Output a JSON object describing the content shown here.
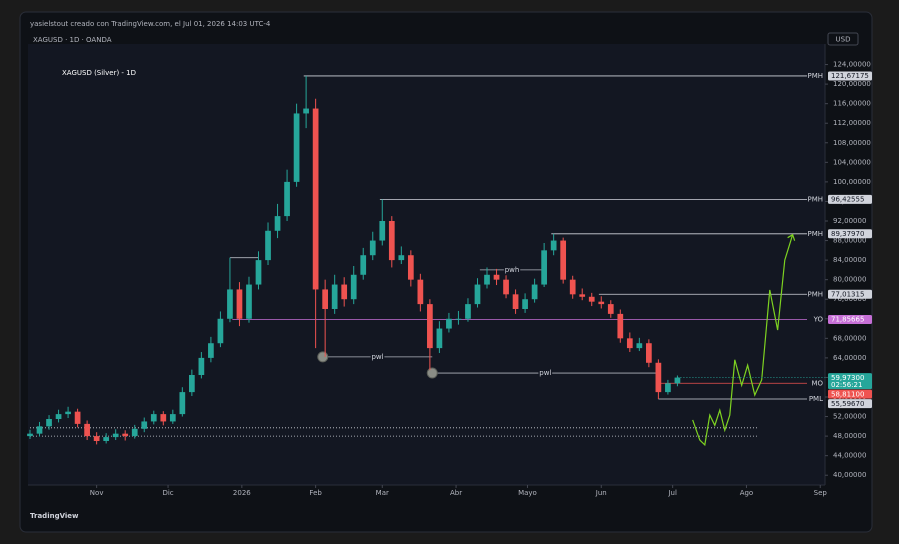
{
  "header": {
    "credit": "yasielstout creado con TradingView.com, el Jul 01, 2026 14:03 UTC-4",
    "symbol": "XAGUSD · 1D · OANDA",
    "currency": "USD",
    "brand": "TradingView"
  },
  "chart_data": {
    "type": "candlestick",
    "title": "XAGUSD (Silver) - 1D",
    "x": [
      -28,
      -24,
      -20,
      -16,
      -12,
      -8,
      -4,
      0,
      4,
      8,
      12,
      16,
      20,
      24,
      28,
      32,
      36,
      40,
      44,
      48,
      52,
      56,
      60,
      64,
      68,
      72,
      76,
      80,
      84,
      88,
      92,
      96,
      100,
      104,
      108,
      112,
      116,
      120,
      124,
      128,
      132,
      136,
      140,
      144,
      148,
      152,
      156,
      160,
      164,
      168,
      172,
      176,
      180,
      184,
      188,
      192,
      196,
      200,
      204,
      208,
      212,
      216,
      220,
      224,
      228,
      232,
      236,
      240,
      244
    ],
    "open": [
      48,
      48.5,
      50,
      51.5,
      52.5,
      53,
      50.5,
      48,
      47,
      47.8,
      48.5,
      48,
      49.5,
      51,
      52.5,
      51,
      52.5,
      57,
      60.5,
      64,
      67,
      72,
      78,
      72,
      79,
      84,
      90,
      93,
      100,
      114,
      115,
      78,
      74,
      79,
      76,
      81,
      85,
      88,
      92,
      84,
      85,
      80,
      75,
      66,
      70,
      72,
      72,
      75,
      79,
      81,
      80,
      77,
      74,
      76,
      79,
      86,
      88,
      80,
      77,
      76.5,
      75.5,
      75,
      73,
      68,
      66,
      67,
      63,
      57,
      58.8
    ],
    "high": [
      49.3,
      50.9,
      52.3,
      53.4,
      54,
      53.6,
      51.2,
      48.8,
      48.6,
      49.4,
      49.2,
      50.3,
      51.8,
      53.2,
      53.1,
      53.4,
      58,
      61.6,
      65.2,
      68.3,
      73.5,
      84.5,
      79.5,
      80.6,
      85.8,
      91.7,
      95.5,
      102.5,
      116,
      121.67,
      117,
      80,
      81,
      80.5,
      82.8,
      86.5,
      89.8,
      96.43,
      93,
      86.8,
      86,
      81.2,
      76,
      71.5,
      73.2,
      73.6,
      76.2,
      80.3,
      82.5,
      82.2,
      80.9,
      78,
      77.2,
      80.2,
      87.5,
      89.38,
      88.6,
      80.8,
      78.2,
      77.3,
      76.6,
      75.8,
      73.9,
      69.2,
      68.1,
      67.8,
      63.7,
      59.5,
      60.4
    ],
    "low": [
      47.4,
      47.9,
      49.3,
      50.8,
      51.7,
      49.8,
      47.2,
      46.3,
      46.5,
      47.2,
      47.1,
      47.5,
      48.8,
      50.4,
      50.2,
      50.5,
      52,
      56.2,
      59.8,
      63.1,
      66.2,
      71.3,
      70.5,
      71.2,
      78,
      83,
      88.5,
      92,
      99,
      111,
      66,
      64.2,
      73,
      74.5,
      75,
      80,
      84,
      87,
      82.5,
      83.2,
      78.6,
      73.5,
      61.5,
      65,
      69.2,
      70.8,
      71.4,
      74.3,
      78.2,
      78.9,
      76.2,
      73,
      73.2,
      75.3,
      78.5,
      85,
      79.2,
      76.1,
      75.8,
      74.6,
      74.1,
      72.2,
      67.1,
      65.2,
      65.4,
      62.1,
      55.5967,
      56.5,
      58.2
    ],
    "close": [
      48.5,
      50,
      51.5,
      52.5,
      53,
      50.5,
      48,
      47,
      47.8,
      48.5,
      48,
      49.5,
      51,
      52.5,
      51,
      52.5,
      57,
      60.5,
      64,
      67,
      72,
      78,
      72,
      79,
      84,
      90,
      93,
      100,
      114,
      115,
      78,
      74,
      79,
      76,
      81,
      85,
      88,
      92,
      84,
      85,
      80,
      75,
      66,
      70,
      72,
      72,
      75,
      79,
      81,
      80,
      77,
      74,
      76,
      79,
      86,
      88,
      80,
      77,
      76.5,
      75.5,
      75,
      73,
      68,
      66,
      67,
      63,
      57,
      58.8,
      59.97
    ],
    "up_color": "#26a69a",
    "down_color": "#ef5350",
    "xlim": [
      -28,
      306
    ],
    "ylim": [
      38,
      128
    ],
    "xticks": [
      {
        "value": 0,
        "label": "Nov"
      },
      {
        "value": 30,
        "label": "Dic"
      },
      {
        "value": 61,
        "label": "2026"
      },
      {
        "value": 92,
        "label": "Feb"
      },
      {
        "value": 120,
        "label": "Mar"
      },
      {
        "value": 151,
        "label": "Abr"
      },
      {
        "value": 181,
        "label": "Mayo"
      },
      {
        "value": 212,
        "label": "Jun"
      },
      {
        "value": 242,
        "label": "Jul"
      },
      {
        "value": 273,
        "label": "Ago"
      },
      {
        "value": 304,
        "label": "Sep"
      }
    ],
    "yticks": [
      {
        "value": 40,
        "label": "40,00000"
      },
      {
        "value": 44,
        "label": "44,00000"
      },
      {
        "value": 48,
        "label": "48,00000"
      },
      {
        "value": 52,
        "label": "52,00000"
      },
      {
        "value": 56,
        "label": "56,00000"
      },
      {
        "value": 60,
        "label": "60,00000"
      },
      {
        "value": 64,
        "label": "64,00000"
      },
      {
        "value": 68,
        "label": "68,00000"
      },
      {
        "value": 72,
        "label": "72,00000"
      },
      {
        "value": 76,
        "label": "76,00000"
      },
      {
        "value": 80,
        "label": "80,00000"
      },
      {
        "value": 84,
        "label": "84,00000"
      },
      {
        "value": 88,
        "label": "88,00000"
      },
      {
        "value": 92,
        "label": "92,00000"
      },
      {
        "value": 96,
        "label": "96,00000"
      },
      {
        "value": 100,
        "label": "100,00000"
      },
      {
        "value": 104,
        "label": "104,00000"
      },
      {
        "value": 108,
        "label": "108,00000"
      },
      {
        "value": 112,
        "label": "112,00000"
      },
      {
        "value": 116,
        "label": "116,00000"
      },
      {
        "value": 120,
        "label": "120,00000"
      },
      {
        "value": 124,
        "label": "124,00000"
      }
    ],
    "level_color": "#d1d4dc",
    "levels": [
      {
        "name": "PMH",
        "value": 121.67175,
        "label": "121,67175",
        "start": 87
      },
      {
        "name": "PMH",
        "value": 96.42555,
        "label": "96,42555",
        "start": 119
      },
      {
        "name": "PMH",
        "value": 89.3797,
        "label": "89,37970",
        "start": 191
      },
      {
        "name": "PMH",
        "value": 77.01315,
        "label": "77,01315",
        "start": 211
      },
      {
        "name": "YO",
        "value": 71.85665,
        "label": "71,85665",
        "start": 57,
        "color": "#c66fd6"
      },
      {
        "name": "MO",
        "value": 58.811,
        "label": "58,81100",
        "start": 236,
        "color": "#ef5350"
      },
      {
        "name": "PML",
        "value": 55.5967,
        "label": "55,59670",
        "start": 236
      }
    ],
    "last_price": {
      "value": 59.973,
      "label": "59,97300",
      "countdown": "02:56:21",
      "color": "#26a69a"
    },
    "segment_color": "#b2b5be",
    "segments": [
      {
        "label": "pwh",
        "value": 82,
        "x0": 161,
        "x1": 188
      },
      {
        "value": 84.5,
        "x0": 56,
        "x1": 68
      },
      {
        "label": "pwl",
        "value": 64.2,
        "x0": 95,
        "x1": 141,
        "marker": true
      },
      {
        "label": "pwl",
        "value": 60.9,
        "x0": 141,
        "x1": 236,
        "marker": true
      }
    ],
    "dotted_levels": [
      49.7,
      48.0
    ],
    "dotted_end": 278,
    "projection": {
      "color": "#7ed321",
      "x": [
        250.4,
        253.4,
        255.5,
        257.6,
        259.7,
        261.8,
        263.9,
        266.0,
        268.1,
        271.0,
        273.5,
        276.5,
        279.4,
        282.8,
        286.1,
        289.1,
        292.4
      ],
      "y": [
        51.3,
        47.2,
        46.2,
        52.3,
        50.2,
        53.3,
        49.2,
        52.3,
        63.6,
        58.4,
        62.5,
        56.4,
        59.5,
        77.9,
        69.7,
        84.0,
        89.2
      ]
    }
  }
}
